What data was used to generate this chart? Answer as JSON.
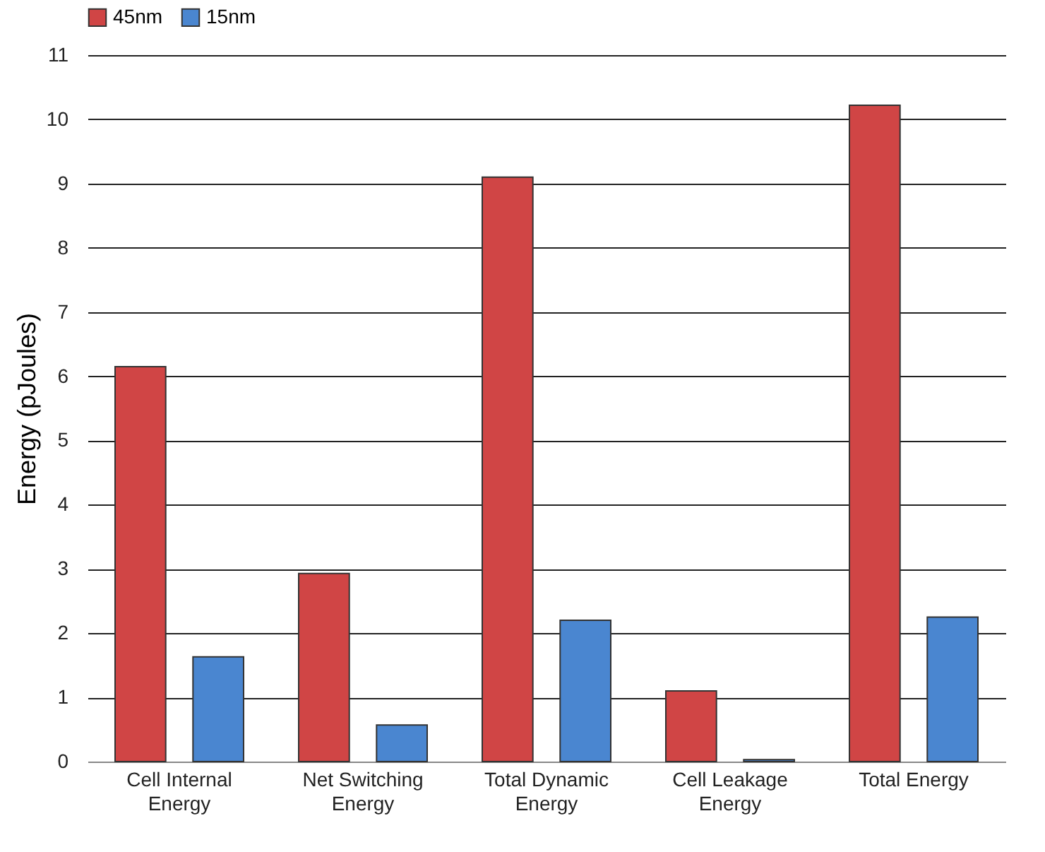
{
  "chart_data": {
    "type": "bar",
    "ylabel": "Energy (pJoules)",
    "categories": [
      "Cell Internal Energy",
      "Net Switching Energy",
      "Total Dynamic Energy",
      "Cell Leakage Energy",
      "Total Energy"
    ],
    "series": [
      {
        "name": "45nm",
        "color": "#d04545",
        "values": [
          6.15,
          2.93,
          9.1,
          1.1,
          10.22
        ]
      },
      {
        "name": "15nm",
        "color": "#4a86d0",
        "values": [
          1.63,
          0.57,
          2.2,
          0.03,
          2.25
        ]
      }
    ],
    "ylim": [
      0,
      11
    ],
    "yticks": [
      0,
      1,
      2,
      3,
      4,
      5,
      6,
      7,
      8,
      9,
      10,
      11
    ],
    "grid": "y",
    "legend": "top"
  }
}
